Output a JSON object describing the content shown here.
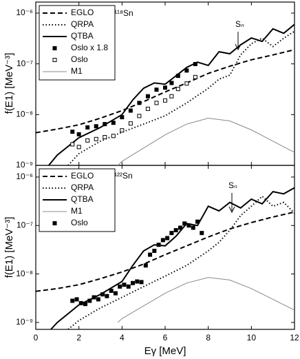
{
  "chart_data": [
    {
      "type": "line",
      "ylabel": "f(E1) [MeV⁻³]",
      "annotation": "¹¹⁸Sn",
      "threshold_label": "Sₙ",
      "log_y": true,
      "legend": "upper left",
      "xlim": [
        0,
        12
      ],
      "ylim": [
        1e-09,
        1.65e-06
      ],
      "yticks": [
        {
          "value": 1e-09,
          "label": "10⁻⁹"
        },
        {
          "value": 1e-08,
          "label": "10⁻⁸"
        },
        {
          "value": 1e-07,
          "label": "10⁻⁷"
        },
        {
          "value": 1e-06,
          "label": "10⁻⁶"
        }
      ],
      "series": [
        {
          "name": "EGLO",
          "color": "#000000",
          "style": "dash",
          "x": [
            0,
            1,
            2,
            3,
            4,
            5,
            6,
            7,
            8,
            9,
            10,
            11,
            12
          ],
          "values": [
            4.4e-09,
            5.2e-09,
            6.3e-09,
            8.5e-09,
            1.2e-08,
            1.8e-08,
            2.8e-08,
            4.2e-08,
            6.5e-08,
            9e-08,
            1.2e-07,
            1.5e-07,
            1.9e-07
          ]
        },
        {
          "name": "QRPA",
          "color": "#000000",
          "style": "dot",
          "x": [
            1.5,
            2,
            3,
            4,
            5,
            6,
            7,
            8,
            8.5,
            9,
            9.5,
            10,
            10.5,
            11,
            11.5,
            12
          ],
          "values": [
            1e-09,
            1.7e-09,
            3e-09,
            4.5e-09,
            6.5e-09,
            9.5e-09,
            1.7e-08,
            3.3e-08,
            5e-08,
            6e-08,
            1.5e-07,
            2.5e-07,
            3.2e-07,
            2.2e-07,
            3.2e-07,
            4.4e-07
          ]
        },
        {
          "name": "QTBA",
          "color": "#000000",
          "style": "solid",
          "x": [
            0.6,
            1,
            2,
            3,
            4,
            4.5,
            5,
            5.5,
            6,
            6.5,
            7,
            7.5,
            8,
            8.5,
            9,
            9.5,
            10,
            10.5,
            11,
            11.5,
            12
          ],
          "values": [
            1e-09,
            1.6e-09,
            3.5e-09,
            5.6e-09,
            1e-08,
            1.95e-08,
            3.3e-08,
            4.2e-08,
            3.98e-08,
            5.8e-08,
            8.5e-08,
            1.08e-07,
            9.3e-08,
            1.73e-07,
            1.58e-07,
            2.37e-07,
            3.24e-07,
            2.77e-07,
            4.9e-07,
            4e-07,
            6e-07
          ]
        },
        {
          "name": "Oslo x 1.8",
          "color": "#000000",
          "style": "marker-filled",
          "x": [
            1.7,
            2.0,
            2.4,
            2.8,
            3.2,
            3.6,
            4.0,
            4.4,
            4.8,
            5.2,
            5.6,
            6.0,
            6.3,
            6.6,
            7.0,
            7.4
          ],
          "values": [
            4.6e-09,
            4.1e-09,
            5.6e-09,
            5.9e-09,
            6.5e-09,
            6.9e-09,
            8.9e-09,
            1.2e-08,
            1.7e-08,
            2.3e-08,
            3.1e-08,
            3.4e-08,
            4.2e-08,
            5.8e-08,
            7.4e-08,
            9.9e-08
          ]
        },
        {
          "name": "Oslo",
          "color": "#000000",
          "style": "marker-open",
          "x": [
            1.7,
            2.0,
            2.4,
            2.8,
            3.2,
            3.6,
            4.0,
            4.4,
            4.8,
            5.2,
            5.6,
            6.0,
            6.3,
            6.6,
            7.0,
            7.4
          ],
          "values": [
            2.6e-09,
            2.3e-09,
            3.1e-09,
            3.3e-09,
            3.6e-09,
            3.8e-09,
            4.9e-09,
            6.7e-09,
            9.4e-09,
            1.3e-08,
            1.7e-08,
            1.9e-08,
            2.3e-08,
            3.2e-08,
            4.1e-08,
            5.5e-08
          ]
        },
        {
          "name": "M1",
          "color": "#888888",
          "style": "thin",
          "x": [
            3.8,
            4,
            5,
            6,
            7,
            8,
            9,
            10,
            11,
            12
          ],
          "values": [
            1e-09,
            1.2e-09,
            2.2e-09,
            4e-09,
            6.5e-09,
            8.5e-09,
            7.5e-09,
            5e-09,
            3e-09,
            1.8e-09
          ]
        }
      ]
    },
    {
      "type": "line",
      "xlabel": "Eγ [MeV]",
      "ylabel": "f(E1) [MeV⁻³]",
      "annotation": "¹²²Sn",
      "threshold_label": "Sₙ",
      "log_y": true,
      "legend": "upper left",
      "xlim": [
        0,
        12
      ],
      "ylim": [
        7.2e-10,
        1.74e-06
      ],
      "xticks": [
        0,
        2,
        4,
        6,
        8,
        10,
        12
      ],
      "yticks": [
        {
          "value": 1e-09,
          "label": "10⁻⁹"
        },
        {
          "value": 1e-08,
          "label": "10⁻⁸"
        },
        {
          "value": 1e-07,
          "label": "10⁻⁷"
        },
        {
          "value": 1e-06,
          "label": "10⁻⁶"
        }
      ],
      "series": [
        {
          "name": "EGLO",
          "color": "#000000",
          "style": "dash",
          "x": [
            0,
            1,
            2,
            3,
            4,
            5,
            6,
            7,
            8,
            9,
            10,
            11,
            12
          ],
          "values": [
            4.4e-09,
            5e-09,
            6e-09,
            8e-09,
            1.1e-08,
            1.6e-08,
            2.5e-08,
            3.8e-08,
            5.8e-08,
            8.5e-08,
            1.15e-07,
            1.5e-07,
            1.9e-07
          ]
        },
        {
          "name": "QRPA",
          "color": "#000000",
          "style": "dot",
          "x": [
            1.5,
            2,
            3,
            4,
            5,
            6,
            7,
            8,
            8.5,
            9,
            9.5,
            10,
            10.5,
            11,
            11.5,
            12
          ],
          "values": [
            7.2e-10,
            1.1e-09,
            2e-09,
            3.3e-09,
            5.5e-09,
            9e-09,
            1.5e-08,
            3e-08,
            4.5e-08,
            8e-08,
            1.6e-07,
            2.5e-07,
            4e-07,
            2.5e-07,
            3e-07,
            1.8e-07
          ]
        },
        {
          "name": "QTBA",
          "color": "#000000",
          "style": "solid",
          "x": [
            0.7,
            1,
            2,
            3,
            4,
            4.5,
            5,
            5.5,
            6,
            6.5,
            7,
            7.5,
            8,
            8.5,
            9,
            9.5,
            10,
            10.5,
            11,
            11.5,
            12
          ],
          "values": [
            7.2e-10,
            1e-09,
            2.3e-09,
            3.8e-09,
            7e-09,
            1.5e-08,
            3e-08,
            4e-08,
            3.8e-08,
            6e-08,
            1.1e-07,
            1e-07,
            2.5e-07,
            2e-07,
            3e-07,
            2.3e-07,
            3.5e-07,
            2.8e-07,
            5e-07,
            4.5e-07,
            6e-07
          ]
        },
        {
          "name": "M1",
          "color": "#888888",
          "style": "thin",
          "x": [
            3.8,
            4,
            5,
            6,
            7,
            8,
            9,
            10,
            11,
            12
          ],
          "values": [
            1e-09,
            1.2e-09,
            2.2e-09,
            4e-09,
            6.5e-09,
            8.5e-09,
            7.5e-09,
            5e-09,
            3e-09,
            1.8e-09
          ]
        },
        {
          "name": "Oslo",
          "color": "#000000",
          "style": "marker-filled",
          "x": [
            1.7,
            1.9,
            2.1,
            2.3,
            2.5,
            2.7,
            2.9,
            3.1,
            3.3,
            3.5,
            3.7,
            3.9,
            4.1,
            4.3,
            4.5,
            4.7,
            4.9,
            5.1,
            5.3,
            5.5,
            5.7,
            5.9,
            6.1,
            6.3,
            6.5,
            6.7,
            6.9,
            7.1,
            7.3,
            7.5,
            7.7
          ],
          "values": [
            2.8e-09,
            3e-09,
            2.5e-09,
            2.4e-09,
            2.8e-09,
            3.3e-09,
            3e-09,
            3.8e-09,
            3.5e-09,
            4.5e-09,
            4e-09,
            5.5e-09,
            6e-09,
            5.5e-09,
            6.5e-09,
            7e-09,
            6.8e-09,
            1.5e-08,
            2.5e-08,
            3e-08,
            4e-08,
            5e-08,
            5.5e-08,
            7e-08,
            8e-08,
            9e-08,
            1.1e-07,
            1e-07,
            9e-08,
            1.2e-07,
            7e-08
          ]
        }
      ]
    }
  ]
}
